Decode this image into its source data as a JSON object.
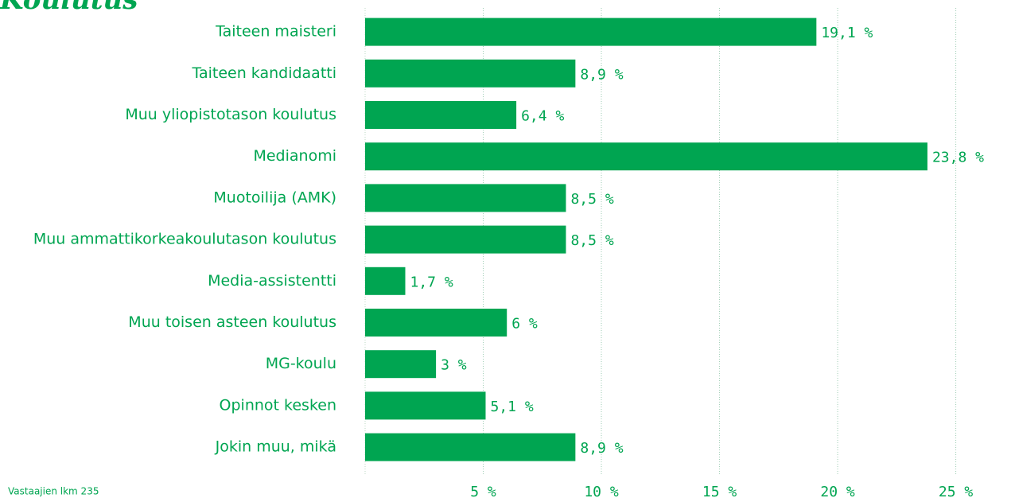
{
  "chart_data": {
    "type": "bar",
    "orientation": "horizontal",
    "title": "Koulutus",
    "note": "Vastaajien lkm 235",
    "categories": [
      "Taiteen maisteri",
      "Taiteen kandidaatti",
      "Muu yliopistotason koulutus",
      "Medianomi",
      "Muotoilija (AMK)",
      "Muu ammattikorkeakoulutason koulutus",
      "Media-assistentti",
      "Muu toisen asteen koulutus",
      "MG-koulu",
      "Opinnot kesken",
      "Jokin muu, mikä"
    ],
    "values": [
      19.1,
      8.9,
      6.4,
      23.8,
      8.5,
      8.5,
      1.7,
      6,
      3,
      5.1,
      8.9
    ],
    "value_labels": [
      "19,1 %",
      "8,9 %",
      "6,4 %",
      "23,8 %",
      "8,5 %",
      "8,5 %",
      "1,7 %",
      "6 %",
      "3 %",
      "5,1 %",
      "8,9 %"
    ],
    "color": "#00a551",
    "xlim": [
      0,
      27
    ],
    "xticks": [
      {
        "value": 5,
        "label": "5 %"
      },
      {
        "value": 10,
        "label": "10 %"
      },
      {
        "value": 15,
        "label": "15 %"
      },
      {
        "value": 20,
        "label": "20 %"
      },
      {
        "value": 25,
        "label": "25 %"
      }
    ],
    "grid": true
  }
}
